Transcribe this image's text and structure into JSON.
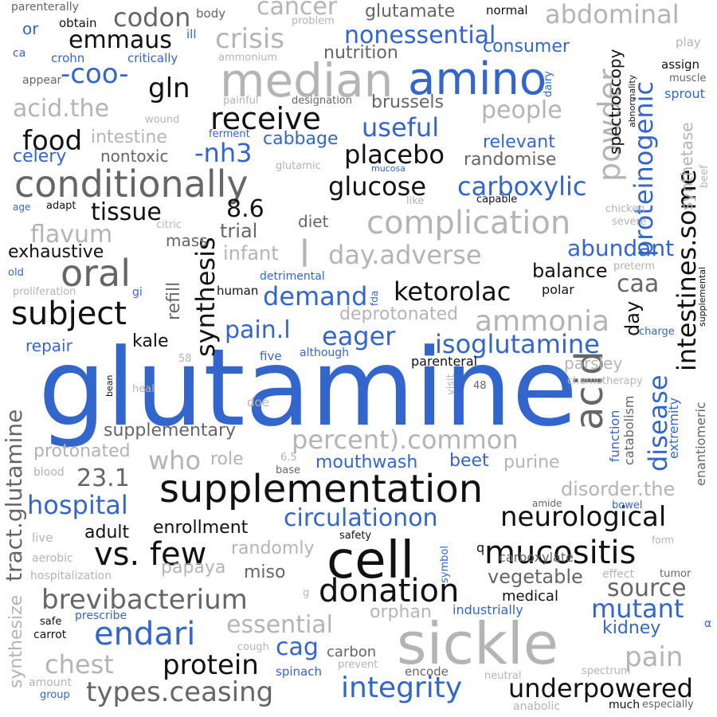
{
  "title": "glutamine word cloud",
  "colors": {
    "blue": "#3366cc",
    "black": "#111111",
    "dark_gray": "#666666",
    "light_gray": "#b4b4b4",
    "background": "#ffffff"
  },
  "words": {
    "glutamine": "glutamine",
    "sickle": "sickle",
    "cell": "cell",
    "median": "median",
    "amino": "amino",
    "supplementation": "supplementation",
    "conditionally": "conditionally",
    "acid": "acid",
    "mucositis": "mucositis",
    "donation": "donation",
    "vs_few": "vs. few",
    "powder": "powder",
    "oral": "oral",
    "subject": "subject",
    "complication": "complication",
    "ammonia": "ammonia",
    "disease": "disease",
    "synthesis": "synthesis",
    "intestines_some": "intestines.some",
    "proteinogenic": "proteinogenic",
    "crisis": "crisis",
    "cancer": "cancer",
    "abdominal": "abdominal",
    "codon": "codon",
    "nonessential": "nonessential",
    "receive": "receive",
    "neurological": "neurological",
    "tract_glutamine": "tract.glutamine",
    "brevibacterium": "brevibacterium",
    "endari": "endari",
    "integrity": "integrity",
    "underpowered": "underpowered",
    "types_ceasing": "types.ceasing",
    "protein": "protein",
    "essential": "essential",
    "circulationon": "circulationon",
    "isoglutamine": "isoglutamine",
    "ketorolac": "ketorolac",
    "percent_common": "percent).common",
    "day_adverse": "day.adverse",
    "mutant": "mutant",
    "source": "source",
    "pain": "pain",
    "chest": "chest",
    "hospital": "hospital",
    "useful": "useful",
    "placebo": "placebo",
    "glucose": "glucose",
    "carboxylic": "carboxylic",
    "abundant": "abundant",
    "demand": "demand",
    "eager": "eager",
    "pain_l": "pain.l",
    "food": "food",
    "gln": "gln",
    "coo": "-coo-",
    "nh3": "-nh3",
    "acid_the": "acid.the",
    "flavum": "flavum",
    "tissue": "tissue",
    "val_8_6": "8.6",
    "val_23_1": "23.1",
    "emmaus": "emmaus",
    "people": "people",
    "synthetase": "synthetase",
    "spectroscopy": "spectroscopy",
    "glutamate": "glutamate",
    "nutrition": "nutrition",
    "consumer": "consumer",
    "brussels": "brussels",
    "relevant": "relevant",
    "randomise": "randomise",
    "cabbage": "cabbage",
    "intestine": "intestine",
    "nontoxic": "nontoxic",
    "celery": "celery",
    "trial": "trial",
    "infant": "infant",
    "mass": "mass",
    "exhaustive": "exhaustive",
    "diet": "diet",
    "balance": "balance",
    "caa": "caa",
    "day": "day",
    "refill": "refill",
    "kale": "kale",
    "repair": "repair",
    "parsley": "parsley",
    "deprotonated": "deprotonated",
    "supplementary": "supplementary",
    "protonated": "protonated",
    "who": "who",
    "role": "role",
    "mouthwash": "mouthwash",
    "beet": "beet",
    "purine": "purine",
    "disorder_the": "disorder.the",
    "enrollment": "enrollment",
    "adult": "adult",
    "randomly": "randomly",
    "papaya": "papaya",
    "miso": "miso",
    "vegetable": "vegetable",
    "orphan": "orphan",
    "cag": "cag",
    "kidney": "kidney",
    "carbon": "carbon",
    "carboxylate": "carboxylate",
    "medical": "medical",
    "industrially": "industrially",
    "synthesize": "synthesize",
    "catabolism": "catabolism",
    "function": "function",
    "extremity": "extremity",
    "enantiomeric": "enantiomeric",
    "chemotherapy": "chemotherapy",
    "parenterally": "parenterally",
    "obtain": "obtain",
    "body": "body",
    "normal": "normal",
    "or": "or",
    "ill": "ill",
    "problem": "problem",
    "play": "play",
    "ca": "ca",
    "crohn": "crohn",
    "critically": "critically",
    "ammonium": "ammonium",
    "assign": "assign",
    "muscle": "muscle",
    "abnormality": "abnormality",
    "appear": "appear",
    "dairy": "dairy",
    "sprout": "sprout",
    "painful": "painful",
    "designation": "designation",
    "wound": "wound",
    "ferment": "ferment",
    "glutamic": "glutamic",
    "mucosa": "mucosa",
    "beef": "beef",
    "age": "age",
    "adapt": "adapt",
    "like": "like",
    "capable": "capable",
    "chicken": "chicken",
    "severe": "severe",
    "citric": "citric",
    "old": "old",
    "preterm": "preterm",
    "supplemental": "supplemental",
    "detrimental": "detrimental",
    "proliferation": "proliferation",
    "gi": "gi",
    "human": "human",
    "fda": "fda",
    "parenteral": "parenteral",
    "polar": "polar",
    "charge": "charge",
    "although": "although",
    "five": "five",
    "val_58": "58",
    "bean": "bean",
    "heal": "heal",
    "visit": "visit",
    "val_48": "48",
    "doe": "doe",
    "val_6_5": "6.5",
    "base": "base",
    "blood": "blood",
    "live": "live",
    "aerobic": "aerobic",
    "hospitalization": "hospitalization",
    "amide": "amide",
    "bowel": "bowel",
    "form": "form",
    "safety": "safety",
    "symbol": "symbol",
    "q": "q",
    "effect": "effect",
    "tumor": "tumor",
    "g": "g",
    "prescribe": "prescribe",
    "safe": "safe",
    "carrot": "carrot",
    "cough": "cough",
    "spinach": "spinach",
    "prevent": "prevent",
    "encode": "encode",
    "neutral": "neutral",
    "spectrum": "spectrum",
    "alpha": "α",
    "amount": "amount",
    "group": "group",
    "anabolic": "anabolic",
    "much": "much",
    "especially": "especially",
    "l": "l"
  }
}
